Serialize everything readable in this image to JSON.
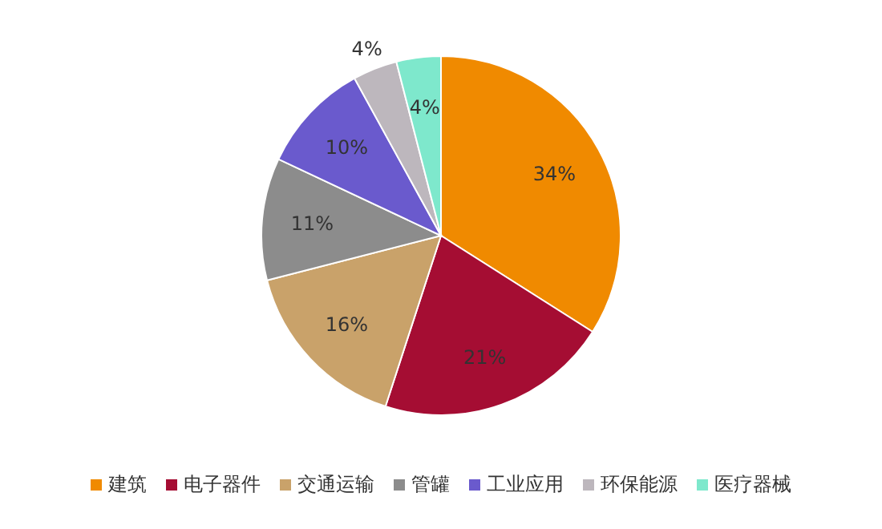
{
  "chart_data": {
    "type": "pie",
    "categories": [
      "建筑",
      "电子器件",
      "交通运输",
      "管罐",
      "工业应用",
      "环保能源",
      "医疗器械"
    ],
    "values": [
      34,
      21,
      16,
      11,
      10,
      4,
      4
    ],
    "colors": [
      "#f08a00",
      "#a50d33",
      "#c9a26a",
      "#8c8c8c",
      "#6a5acd",
      "#bdb7bd",
      "#7ee8cc"
    ],
    "value_labels": [
      "34%",
      "21%",
      "16%",
      "11%",
      "10%",
      "4%",
      "4%"
    ],
    "legend": "bottom"
  }
}
